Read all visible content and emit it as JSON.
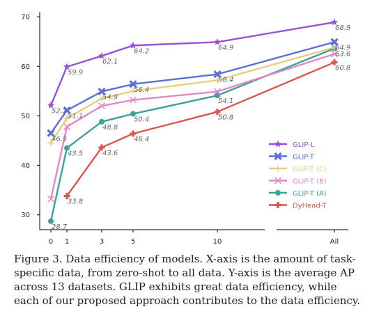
{
  "chart_data": {
    "type": "line",
    "title": "",
    "xlabel": "",
    "ylabel": "",
    "ylim": [
      27,
      71
    ],
    "x_ticks": [
      "0",
      "1",
      "3",
      "5",
      "10",
      "All"
    ],
    "y_ticks": [
      30,
      40,
      50,
      60,
      70
    ],
    "x": [
      "0",
      "1",
      "3",
      "5",
      "10",
      "All"
    ],
    "legend_position": "center-right",
    "series": [
      {
        "name": "GLIP-L",
        "color": "#9b4fd9",
        "marker": "star",
        "values": [
          52.1,
          59.9,
          62.1,
          64.2,
          64.9,
          68.9
        ],
        "labels": [
          "52.1",
          "59.9",
          "62.1",
          "64.2",
          "64.9",
          "68.9"
        ]
      },
      {
        "name": "GLIP-T",
        "color": "#5b6fd6",
        "marker": "x-thick",
        "values": [
          46.5,
          51.1,
          54.9,
          56.4,
          58.4,
          64.9
        ],
        "labels": [
          "46.5",
          "51.1",
          "54.9",
          "56.4",
          "58.4",
          "64.9"
        ]
      },
      {
        "name": "GLIP-T (C)",
        "color": "#e6cf7d",
        "marker": "plus",
        "values": [
          44.5,
          49.5,
          53.5,
          55.0,
          57.2,
          63.8
        ],
        "labels": []
      },
      {
        "name": "GLIP-T (B)",
        "color": "#e486c8",
        "marker": "x",
        "values": [
          33.2,
          47.8,
          52.0,
          53.2,
          54.9,
          62.5
        ],
        "labels": []
      },
      {
        "name": "GLIP-T (A)",
        "color": "#3aa39a",
        "marker": "circle",
        "values": [
          28.7,
          43.5,
          48.8,
          50.4,
          54.1,
          63.6
        ],
        "labels": [
          "28.7",
          "43.5",
          "48.8",
          "50.4",
          "54.1",
          "63.6"
        ]
      },
      {
        "name": "DyHead-T",
        "color": "#d9574a",
        "marker": "plus-thick",
        "values": [
          null,
          33.8,
          43.6,
          46.4,
          50.8,
          60.8
        ],
        "labels": [
          null,
          "33.8",
          "43.6",
          "46.4",
          "50.8",
          "60.8"
        ]
      }
    ]
  },
  "caption": "Figure 3. Data efficiency of models. X-axis is the amount of task-specific data, from zero-shot to all data. Y-axis is the average AP across 13 datasets. GLIP exhibits great data efficiency, while each of our proposed approach contributes to the data efficiency."
}
